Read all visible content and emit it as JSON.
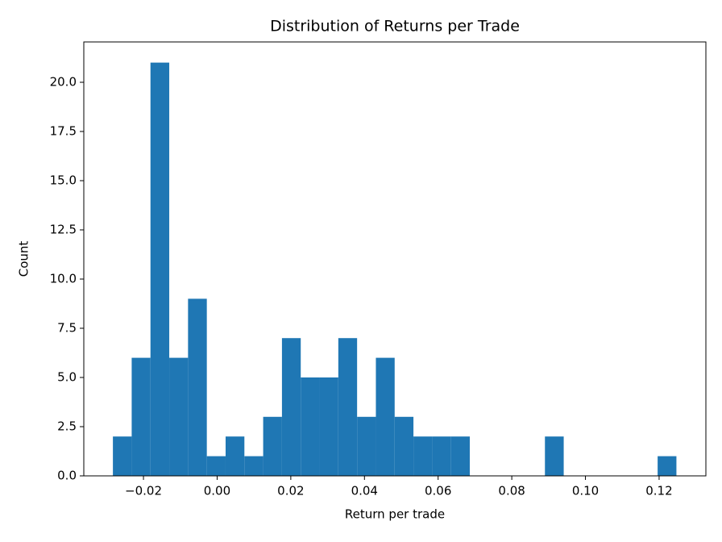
{
  "chart_data": {
    "type": "histogram",
    "title": "Distribution of Returns per Trade",
    "xlabel": "Return per trade",
    "ylabel": "Count",
    "bins": [
      -0.0283,
      -0.0232,
      -0.0181,
      -0.013,
      -0.0079,
      -0.0028,
      0.0023,
      0.0074,
      0.0125,
      0.0176,
      0.0227,
      0.0278,
      0.0329,
      0.038,
      0.0431,
      0.0482,
      0.0533,
      0.0584,
      0.0635,
      0.0686,
      0.0737,
      0.0788,
      0.0839,
      0.089,
      0.0941,
      0.0992,
      0.1043,
      0.1094,
      0.1145,
      0.1196,
      0.1247
    ],
    "values": [
      2,
      6,
      21,
      6,
      9,
      1,
      2,
      1,
      3,
      7,
      5,
      5,
      7,
      3,
      6,
      3,
      2,
      2,
      2,
      0,
      0,
      0,
      0,
      2,
      0,
      0,
      0,
      0,
      0,
      1
    ],
    "color": "#1f77b4",
    "xlim": [
      -0.0362,
      0.1327
    ],
    "ylim": [
      0,
      22.05
    ],
    "xticks": [
      {
        "value": -0.02,
        "label": "−0.02"
      },
      {
        "value": 0,
        "label": "0.00"
      },
      {
        "value": 0.02,
        "label": "0.02"
      },
      {
        "value": 0.04,
        "label": "0.04"
      },
      {
        "value": 0.06,
        "label": "0.06"
      },
      {
        "value": 0.08,
        "label": "0.08"
      },
      {
        "value": 0.1,
        "label": "0.10"
      },
      {
        "value": 0.12,
        "label": "0.12"
      }
    ],
    "yticks": [
      {
        "value": 0,
        "label": "0.0"
      },
      2.5,
      {
        "value": 5,
        "label": "5.0"
      },
      7.5,
      {
        "value": 10,
        "label": "10.0"
      },
      12.5,
      {
        "value": 15,
        "label": "15.0"
      },
      17.5,
      {
        "value": 20,
        "label": "20.0"
      }
    ]
  }
}
